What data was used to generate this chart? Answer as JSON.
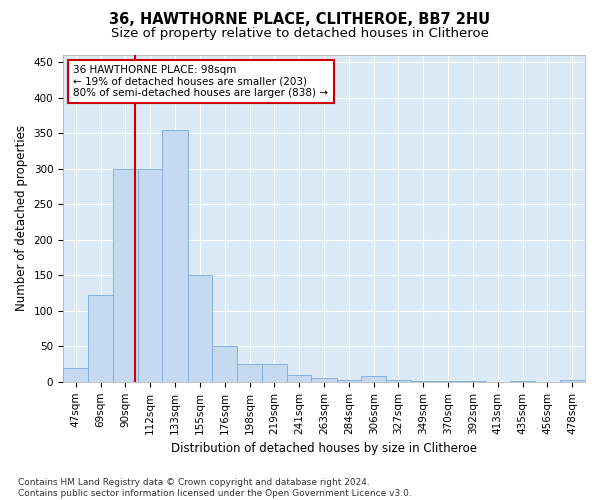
{
  "title_line1": "36, HAWTHORNE PLACE, CLITHEROE, BB7 2HU",
  "title_line2": "Size of property relative to detached houses in Clitheroe",
  "xlabel": "Distribution of detached houses by size in Clitheroe",
  "ylabel": "Number of detached properties",
  "footer_line1": "Contains HM Land Registry data © Crown copyright and database right 2024.",
  "footer_line2": "Contains public sector information licensed under the Open Government Licence v3.0.",
  "annotation_line1": "36 HAWTHORNE PLACE: 98sqm",
  "annotation_line2": "← 19% of detached houses are smaller (203)",
  "annotation_line3": "80% of semi-detached houses are larger (838) →",
  "property_size": 98,
  "bar_color": "#c5d9f0",
  "bar_edge_color": "#7aaadb",
  "redline_color": "#cc0000",
  "annotation_box_edge": "#cc0000",
  "bin_edges": [
    36,
    58,
    79,
    101,
    122,
    144,
    165,
    187,
    208,
    230,
    251,
    273,
    294,
    316,
    337,
    359,
    380,
    402,
    423,
    445,
    466,
    488
  ],
  "bin_labels": [
    "47sqm",
    "69sqm",
    "90sqm",
    "112sqm",
    "133sqm",
    "155sqm",
    "176sqm",
    "198sqm",
    "219sqm",
    "241sqm",
    "263sqm",
    "284sqm",
    "306sqm",
    "327sqm",
    "349sqm",
    "370sqm",
    "392sqm",
    "413sqm",
    "435sqm",
    "456sqm",
    "478sqm"
  ],
  "heights": [
    20,
    122,
    300,
    300,
    355,
    150,
    50,
    25,
    25,
    10,
    5,
    3,
    8,
    2,
    1,
    1,
    1,
    0,
    1,
    0,
    2
  ],
  "ylim": [
    0,
    460
  ],
  "yticks": [
    0,
    50,
    100,
    150,
    200,
    250,
    300,
    350,
    400,
    450
  ],
  "fig_bg_color": "#ffffff",
  "plot_bg_color": "#dce9f7",
  "grid_color": "#ffffff",
  "title_fontsize": 10.5,
  "subtitle_fontsize": 9.5,
  "axis_label_fontsize": 8.5,
  "tick_fontsize": 7.5,
  "footer_fontsize": 6.5
}
